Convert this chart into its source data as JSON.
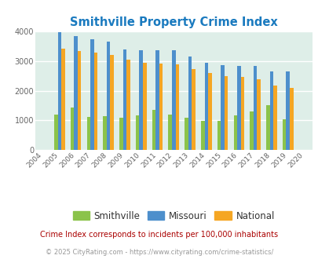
{
  "title": "Smithville Property Crime Index",
  "years": [
    2004,
    2005,
    2006,
    2007,
    2008,
    2009,
    2010,
    2011,
    2012,
    2013,
    2014,
    2015,
    2016,
    2017,
    2018,
    2019,
    2020
  ],
  "smithville": [
    0,
    1200,
    1440,
    1110,
    1150,
    1100,
    1170,
    1360,
    1200,
    1100,
    980,
    980,
    1170,
    1300,
    1510,
    1040,
    0
  ],
  "missouri": [
    0,
    3950,
    3820,
    3720,
    3640,
    3390,
    3370,
    3360,
    3360,
    3140,
    2940,
    2860,
    2820,
    2840,
    2640,
    2640,
    0
  ],
  "national": [
    0,
    3420,
    3340,
    3270,
    3210,
    3040,
    2940,
    2910,
    2870,
    2720,
    2590,
    2490,
    2450,
    2380,
    2160,
    2090,
    0
  ],
  "smithville_color": "#8bc34a",
  "missouri_color": "#4d8fcc",
  "national_color": "#f5a623",
  "bg_color": "#deeee8",
  "title_color": "#1a7abf",
  "ylabel_max": 4000,
  "yticks": [
    0,
    1000,
    2000,
    3000,
    4000
  ],
  "footnote": "Crime Index corresponds to incidents per 100,000 inhabitants",
  "copyright": "© 2025 CityRating.com - https://www.cityrating.com/crime-statistics/",
  "legend_labels": [
    "Smithville",
    "Missouri",
    "National"
  ]
}
